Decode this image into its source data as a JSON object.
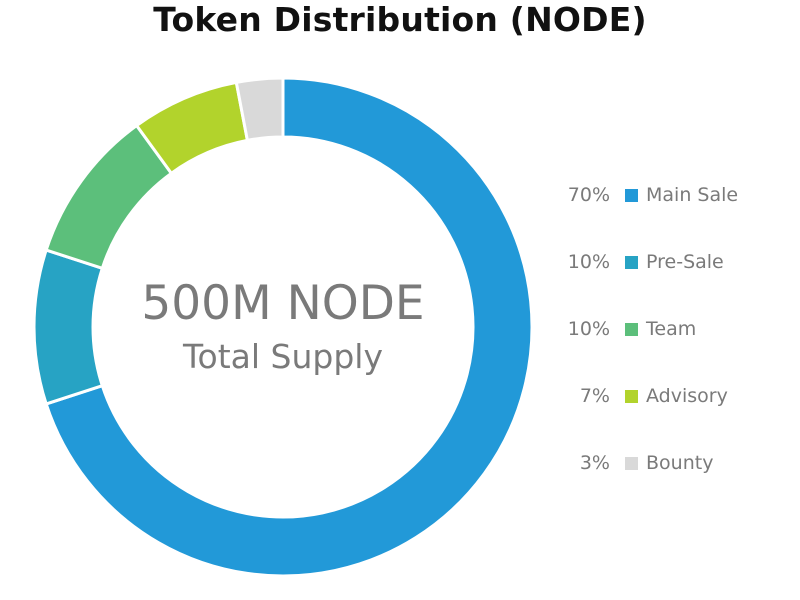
{
  "title": "Token Distribution (NODE)",
  "center": {
    "main": "500M NODE",
    "sub": "Total Supply"
  },
  "chart_data": {
    "type": "pie",
    "donut": true,
    "title": "Token Distribution (NODE)",
    "categories": [
      "Main Sale",
      "Pre-Sale",
      "Team",
      "Advisory",
      "Bounty"
    ],
    "values": [
      70,
      10,
      10,
      7,
      3
    ],
    "value_labels": [
      "70%",
      "10%",
      "10%",
      "7%",
      "3%"
    ],
    "colors": [
      "#2299d8",
      "#27a3c4",
      "#5cbf7b",
      "#b2d32c",
      "#d9d9d9"
    ],
    "legend_position": "right"
  }
}
